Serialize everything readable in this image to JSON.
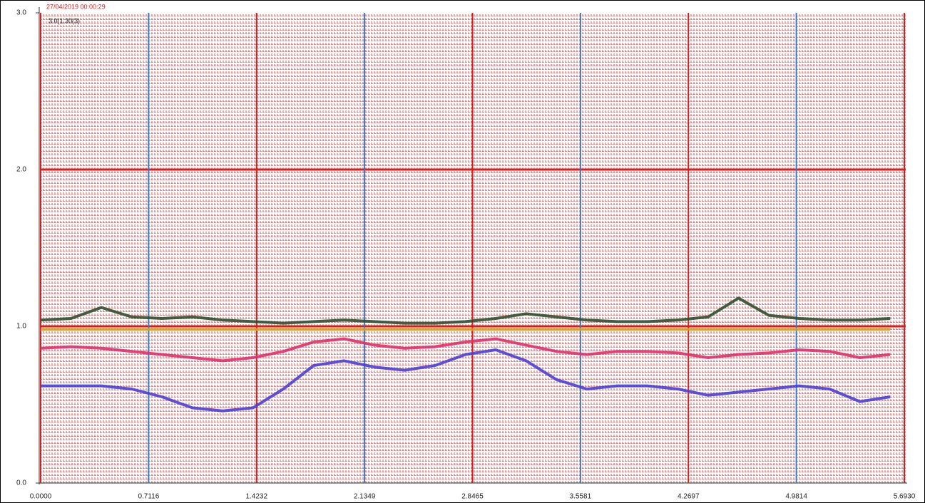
{
  "chart_data": {
    "type": "line",
    "title": "27/04/2019 00:00:29",
    "subtitle": "3.0(1.30(3)",
    "x": [
      0,
      0.2,
      0.4,
      0.6,
      0.8,
      1.0,
      1.2,
      1.4,
      1.6,
      1.8,
      2.0,
      2.2,
      2.4,
      2.6,
      2.8,
      3.0,
      3.2,
      3.4,
      3.6,
      3.8,
      4.0,
      4.2,
      4.4,
      4.6,
      4.8,
      5.0,
      5.2,
      5.4,
      5.6
    ],
    "series": [
      {
        "color": "#2f4f2f",
        "values": [
          1.04,
          1.05,
          1.12,
          1.06,
          1.05,
          1.06,
          1.04,
          1.03,
          1.02,
          1.03,
          1.04,
          1.03,
          1.02,
          1.02,
          1.03,
          1.05,
          1.08,
          1.06,
          1.04,
          1.03,
          1.03,
          1.04,
          1.06,
          1.18,
          1.07,
          1.05,
          1.04,
          1.04,
          1.05
        ]
      },
      {
        "color": "#d9a020",
        "values": [
          0.98,
          0.98,
          0.98,
          0.98,
          0.98,
          0.98,
          0.98,
          0.98,
          0.98,
          0.98,
          0.98,
          0.98,
          0.98,
          0.98,
          0.98,
          0.98,
          0.98,
          0.98,
          0.98,
          0.98,
          0.98,
          0.98,
          0.98,
          0.98,
          0.98,
          0.98,
          0.98,
          0.98,
          0.98
        ]
      },
      {
        "color": "#e0306a",
        "values": [
          0.86,
          0.87,
          0.86,
          0.84,
          0.82,
          0.8,
          0.78,
          0.8,
          0.84,
          0.9,
          0.92,
          0.88,
          0.86,
          0.87,
          0.9,
          0.92,
          0.88,
          0.84,
          0.82,
          0.84,
          0.84,
          0.83,
          0.8,
          0.82,
          0.83,
          0.85,
          0.84,
          0.8,
          0.82
        ]
      },
      {
        "color": "#4a3fd8",
        "values": [
          0.62,
          0.62,
          0.62,
          0.6,
          0.55,
          0.48,
          0.46,
          0.48,
          0.6,
          0.75,
          0.78,
          0.74,
          0.72,
          0.75,
          0.82,
          0.85,
          0.78,
          0.66,
          0.6,
          0.62,
          0.62,
          0.6,
          0.56,
          0.58,
          0.6,
          0.62,
          0.6,
          0.52,
          0.55
        ]
      }
    ],
    "xlim": [
      0,
      5.693
    ],
    "ylim": [
      0,
      3
    ],
    "xticks": [
      {
        "value": 0,
        "label": "0.0000"
      },
      0.7116,
      1.4232,
      2.1349,
      2.8465,
      3.5581,
      4.2697,
      4.9814,
      {
        "value": 5.693,
        "label": "5.6930"
      }
    ],
    "yticks": [
      {
        "value": 0,
        "label": "0.0"
      },
      {
        "value": 1,
        "label": "1.0"
      },
      {
        "value": 2,
        "label": "2.0"
      },
      {
        "value": 3,
        "label": "3.0"
      }
    ],
    "grid": true,
    "grid_colors": [
      "#d42020",
      "#3b78c4"
    ]
  }
}
